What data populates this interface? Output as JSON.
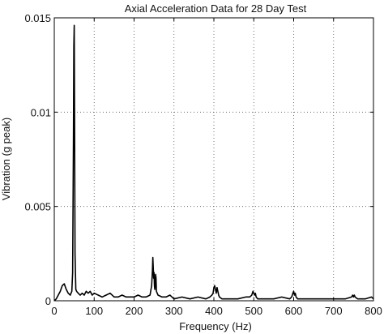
{
  "chart_data": {
    "type": "line",
    "title": "Axial Acceleration Data for 28 Day Test",
    "xlabel": "Frequency (Hz)",
    "ylabel": "Vibration (g peak)",
    "xlim": [
      0,
      800
    ],
    "ylim": [
      0,
      0.015
    ],
    "x_ticks": [
      0,
      100,
      200,
      300,
      400,
      500,
      600,
      700,
      800
    ],
    "x_tick_labels": [
      "0",
      "100",
      "200",
      "300",
      "400",
      "500",
      "600",
      "700",
      "800"
    ],
    "y_ticks": [
      0,
      0.005,
      0.01,
      0.015
    ],
    "y_tick_labels": [
      "0",
      "0.005",
      "0.01",
      "0.015"
    ],
    "grid": true,
    "grid_style": "dotted",
    "line_color": "#000000",
    "series": [
      {
        "x": [
          0,
          5,
          10,
          15,
          20,
          25,
          30,
          35,
          40,
          44,
          46,
          48,
          49,
          50,
          51,
          52,
          54,
          56,
          60,
          65,
          70,
          75,
          80,
          85,
          90,
          95,
          100,
          110,
          120,
          130,
          140,
          150,
          160,
          170,
          180,
          190,
          200,
          210,
          220,
          230,
          240,
          244,
          246,
          247,
          248,
          249,
          250,
          251,
          252,
          253,
          254,
          255,
          256,
          258,
          260,
          270,
          280,
          290,
          300,
          320,
          340,
          360,
          380,
          390,
          395,
          398,
          400,
          402,
          404,
          406,
          408,
          410,
          412,
          414,
          420,
          440,
          460,
          480,
          490,
          495,
          498,
          500,
          502,
          504,
          506,
          510,
          530,
          550,
          570,
          590,
          595,
          598,
          600,
          602,
          604,
          606,
          610,
          630,
          650,
          670,
          690,
          710,
          730,
          745,
          748,
          750,
          752,
          754,
          760,
          780,
          795,
          800
        ],
        "y": [
          0,
          0.0001,
          0.0003,
          0.0005,
          0.0008,
          0.0009,
          0.0006,
          0.0004,
          0.0003,
          0.0005,
          0.0015,
          0.0085,
          0.0135,
          0.0146,
          0.009,
          0.0025,
          0.0006,
          0.0005,
          0.0004,
          0.0003,
          0.0004,
          0.0003,
          0.0005,
          0.0004,
          0.0005,
          0.0003,
          0.0004,
          0.0003,
          0.0002,
          0.0003,
          0.0004,
          0.0002,
          0.0002,
          0.0003,
          0.0002,
          0.0002,
          0.0002,
          0.0003,
          0.0002,
          0.0002,
          0.0003,
          0.0008,
          0.0016,
          0.0023,
          0.0018,
          0.0012,
          0.0015,
          0.0008,
          0.0006,
          0.0009,
          0.0014,
          0.0012,
          0.0005,
          0.0004,
          0.0003,
          0.0002,
          0.0002,
          0.0003,
          0.0001,
          0.0002,
          0.0001,
          0.0002,
          0.0001,
          0.0002,
          0.0003,
          0.0004,
          0.0007,
          0.0008,
          0.0006,
          0.0004,
          0.0007,
          0.0005,
          0.0003,
          0.0002,
          0.0001,
          0.0001,
          0.0001,
          0.0002,
          0.0002,
          0.0003,
          0.0005,
          0.0004,
          0.0003,
          0.0004,
          0.0002,
          0.0001,
          0.0001,
          0.0001,
          0.0002,
          0.0001,
          0.0002,
          0.0004,
          0.0005,
          0.0003,
          0.0004,
          0.0002,
          0.0001,
          0.0001,
          0.0001,
          0.0001,
          0.0001,
          0.0001,
          0.0001,
          0.0002,
          0.0003,
          0.0002,
          0.0003,
          0.0002,
          0.0001,
          0.0001,
          0.0002,
          0.0001
        ]
      }
    ]
  }
}
